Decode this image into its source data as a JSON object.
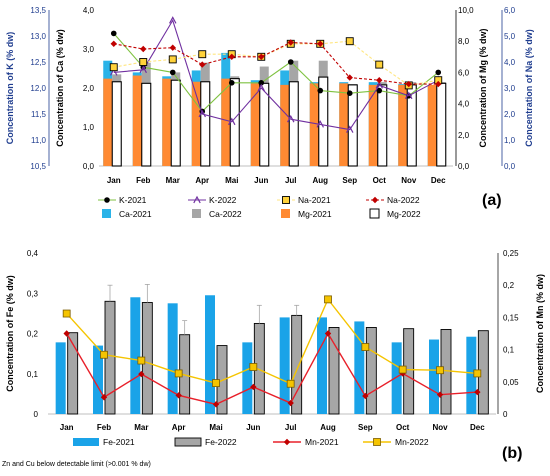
{
  "figure": {
    "footnote": "Zn and Cu below detectable limit (>0.001 % dw)"
  },
  "chart_data": [
    {
      "type": "bar",
      "panel_label": "(a)",
      "categories": [
        "Jan",
        "Feb",
        "Mar",
        "Apr",
        "Mai",
        "Jun",
        "Jul",
        "Aug",
        "Sep",
        "Oct",
        "Nov",
        "Dec"
      ],
      "axes": {
        "k": {
          "label": "Concentration of K (% dw)",
          "ylim": [
            10.5,
            13.5
          ],
          "ticks": [
            "10,5",
            "11,0",
            "11,5",
            "12,0",
            "12,5",
            "13,0",
            "13,5"
          ],
          "color": "#1f3d8f"
        },
        "ca": {
          "label": "Concentration of Ca (% dw)",
          "ylim": [
            0,
            4
          ],
          "ticks": [
            "0,0",
            "1,0",
            "2,0",
            "3,0",
            "4,0"
          ],
          "color": "#000000"
        },
        "mg": {
          "label": "Concentration of Mg (% dw)",
          "ylim": [
            0,
            10
          ],
          "ticks": [
            "0,0",
            "2,0",
            "4,0",
            "6,0",
            "8,0",
            "10,0"
          ],
          "color": "#000000"
        },
        "na": {
          "label": "Concentration of  Na (% dw)",
          "ylim": [
            0,
            6
          ],
          "ticks": [
            "0,0",
            "1,0",
            "2,0",
            "3,0",
            "4,0",
            "5,0",
            "6,0"
          ],
          "color": "#1f3d8f"
        }
      },
      "bar_series": [
        {
          "name": "Ca-2021",
          "axis": "ca",
          "color": "#2ab3e8",
          "values": [
            2.7,
            2.4,
            2.3,
            2.45,
            2.9,
            2.2,
            2.45,
            2.15,
            2.15,
            2.15,
            2.1,
            2.05
          ]
        },
        {
          "name": "Ca-2022",
          "axis": "ca",
          "color": "#a6a6a6",
          "values": [
            2.35,
            2.65,
            2.4,
            2.65,
            2.3,
            2.55,
            2.7,
            2.7,
            2.1,
            2.15,
            2.15,
            2.15
          ]
        },
        {
          "name": "Mg-2021",
          "axis": "mg",
          "color": "#ff8a33",
          "values": [
            5.6,
            5.8,
            5.6,
            5.4,
            5.6,
            5.3,
            5.2,
            5.3,
            5.3,
            5.2,
            5.2,
            5.2
          ]
        },
        {
          "name": "Mg-2022",
          "axis": "mg",
          "color": "#ffffff",
          "edge": "#000000",
          "values": [
            5.4,
            5.3,
            5.5,
            5.4,
            5.6,
            5.3,
            5.4,
            5.7,
            5.2,
            5.2,
            5.2,
            5.3
          ]
        }
      ],
      "line_series": [
        {
          "name": "K-2021",
          "axis": "k",
          "color": "#7fc241",
          "marker": "circle-black",
          "dash": false,
          "values": [
            13.05,
            12.4,
            12.3,
            11.55,
            12.1,
            12.1,
            12.5,
            11.95,
            11.9,
            11.95,
            11.85,
            12.3
          ]
        },
        {
          "name": "K-2022",
          "axis": "k",
          "color": "#7030a0",
          "marker": "triangle",
          "dash": false,
          "values": [
            12.3,
            12.35,
            13.3,
            11.5,
            11.35,
            12.0,
            11.4,
            11.3,
            11.2,
            12.05,
            11.85,
            12.15
          ]
        },
        {
          "name": "Na-2021",
          "axis": "na",
          "color": "#ffe680",
          "marker": "square-yellow",
          "dash": true,
          "values": [
            3.8,
            4.0,
            4.1,
            4.3,
            4.3,
            4.2,
            4.7,
            4.7,
            4.8,
            3.9,
            3.1,
            3.3
          ]
        },
        {
          "name": "Na-2022",
          "axis": "na",
          "color": "#c00000",
          "marker": "diamond-red",
          "dash": true,
          "values": [
            4.7,
            4.5,
            4.55,
            3.9,
            4.2,
            4.2,
            4.75,
            4.7,
            3.4,
            3.3,
            3.15,
            3.15
          ]
        }
      ],
      "legend": [
        "K-2021",
        "K-2022",
        "Na-2021",
        "Na-2022",
        "Ca-2021",
        "Ca-2022",
        "Mg-2021",
        "Mg-2022"
      ],
      "legend_position": "bottom"
    },
    {
      "type": "bar",
      "panel_label": "(b)",
      "categories": [
        "Jan",
        "Feb",
        "Mar",
        "Apr",
        "Mai",
        "Jun",
        "Jul",
        "Aug",
        "Sep",
        "Oct",
        "Nov",
        "Dec"
      ],
      "axes": {
        "fe": {
          "label": "Concentration of  Fe (% dw)",
          "ylim": [
            0,
            0.4
          ],
          "ticks": [
            "0",
            "0,1",
            "0,2",
            "0,3",
            "0,4"
          ],
          "color": "#000000"
        },
        "mn": {
          "label": "Concentration of  Mn (% dw)",
          "ylim": [
            0,
            0.25
          ],
          "ticks": [
            "0",
            "0,05",
            "0,1",
            "0,15",
            "0,2",
            "0,25"
          ],
          "color": "#000000"
        }
      },
      "bar_series": [
        {
          "name": "Fe-2021",
          "axis": "fe",
          "color": "#1aa3e8",
          "values": [
            0.178,
            0.17,
            0.29,
            0.275,
            0.295,
            0.178,
            0.24,
            0.24,
            0.23,
            0.178,
            0.185,
            0.192
          ]
        },
        {
          "name": "Fe-2022",
          "axis": "fe",
          "color": "#a6a6a6",
          "edge": "#000000",
          "values": [
            0.202,
            0.28,
            0.277,
            0.197,
            0.17,
            0.225,
            0.245,
            0.215,
            0.215,
            0.212,
            0.21,
            0.207
          ]
        }
      ],
      "error_bars": {
        "Fe-2022": [
          0,
          0.04,
          0.045,
          0.035,
          0,
          0.045,
          0.025,
          0,
          0,
          0,
          0,
          0
        ]
      },
      "line_series": [
        {
          "name": "Mn-2021",
          "axis": "mn",
          "color": "#e8202a",
          "marker": "diamond-red",
          "dash": false,
          "values": [
            0.125,
            0.026,
            0.062,
            0.029,
            0.015,
            0.042,
            0.017,
            0.125,
            0.028,
            0.063,
            0.03,
            0.034
          ]
        },
        {
          "name": "Mn-2022",
          "axis": "mn",
          "color": "#f5c400",
          "marker": "square-yellow",
          "dash": false,
          "values": [
            0.156,
            0.092,
            0.083,
            0.063,
            0.048,
            0.073,
            0.047,
            0.178,
            0.104,
            0.069,
            0.068,
            0.063
          ]
        }
      ],
      "legend": [
        "Fe-2021",
        "Fe-2022",
        "Mn-2021",
        "Mn-2022"
      ],
      "legend_position": "bottom"
    }
  ]
}
